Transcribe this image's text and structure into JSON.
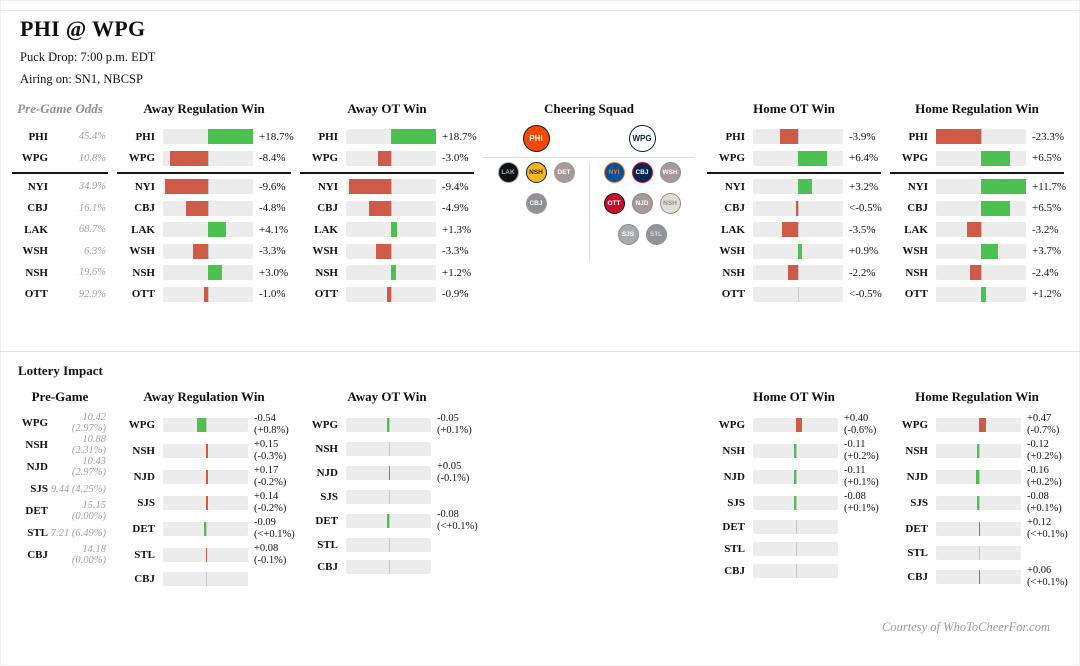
{
  "title": "PHI @ WPG",
  "subtitle1": "Puck Drop: 7:00 p.m. EDT",
  "subtitle2": "Airing on: SN1, NBCSP",
  "footer": "Courtesy of WhoToCheerFor.com",
  "lottery_title": "Lottery Impact",
  "colors": {
    "positive_green": "#4CC152",
    "negative_red": "#CE5B48",
    "bar_track": "#ECECEC",
    "center_line": "#C7C7C7",
    "muted_text": "#A0A0A0",
    "divider_black": "#151515"
  },
  "chart_data": [
    {
      "id": "pregame-odds",
      "type": "table",
      "title": "Pre-Game Odds",
      "categories": [
        "PHI",
        "WPG",
        "NYI",
        "CBJ",
        "LAK",
        "WSH",
        "NSH",
        "OTT"
      ],
      "values": [
        "45.4%",
        "10.8%",
        "34.9%",
        "16.1%",
        "68.7%",
        "6.3%",
        "19.6%",
        "92.9%"
      ]
    },
    {
      "id": "away-regulation-win",
      "type": "bar",
      "title": "Away Regulation Win",
      "xlim": [
        -10,
        10
      ],
      "categories": [
        "PHI",
        "WPG",
        "NYI",
        "CBJ",
        "LAK",
        "WSH",
        "NSH",
        "OTT"
      ],
      "values": [
        18.7,
        -8.4,
        -9.6,
        -4.8,
        4.1,
        -3.3,
        3.0,
        -1.0
      ],
      "labels": [
        "+18.7%",
        "-8.4%",
        "-9.6%",
        "-4.8%",
        "+4.1%",
        "-3.3%",
        "+3.0%",
        "-1.0%"
      ]
    },
    {
      "id": "away-ot-win",
      "type": "bar",
      "title": "Away OT Win",
      "xlim": [
        -10,
        10
      ],
      "categories": [
        "PHI",
        "WPG",
        "NYI",
        "CBJ",
        "LAK",
        "WSH",
        "NSH",
        "OTT"
      ],
      "values": [
        18.7,
        -3.0,
        -9.4,
        -4.9,
        1.3,
        -3.3,
        1.2,
        -0.9
      ],
      "labels": [
        "+18.7%",
        "-3.0%",
        "-9.4%",
        "-4.9%",
        "+1.3%",
        "-3.3%",
        "+1.2%",
        "-0.9%"
      ]
    },
    {
      "id": "home-ot-win",
      "type": "bar",
      "title": "Home OT Win",
      "xlim": [
        -10,
        10
      ],
      "categories": [
        "PHI",
        "WPG",
        "NYI",
        "CBJ",
        "LAK",
        "WSH",
        "NSH",
        "OTT"
      ],
      "values": [
        -3.9,
        6.4,
        3.2,
        -0.5,
        -3.5,
        0.9,
        -2.2,
        0
      ],
      "labels": [
        "-3.9%",
        "+6.4%",
        "+3.2%",
        "<-0.5%",
        "-3.5%",
        "+0.9%",
        "-2.2%",
        "<-0.5%"
      ]
    },
    {
      "id": "home-regulation-win",
      "type": "bar",
      "title": "Home Regulation Win",
      "xlim": [
        -10,
        10
      ],
      "categories": [
        "PHI",
        "WPG",
        "NYI",
        "CBJ",
        "LAK",
        "WSH",
        "NSH",
        "OTT"
      ],
      "values": [
        -23.3,
        6.5,
        11.7,
        6.5,
        -3.2,
        3.7,
        -2.4,
        1.2
      ],
      "labels": [
        "-23.3%",
        "+6.5%",
        "+11.7%",
        "+6.5%",
        "-3.2%",
        "+3.7%",
        "-2.4%",
        "+1.2%"
      ]
    },
    {
      "id": "lottery-pregame",
      "type": "table",
      "title": "Pre-Game",
      "categories": [
        "WPG",
        "NSH",
        "NJD",
        "SJS",
        "DET",
        "STL",
        "CBJ"
      ],
      "values": [
        "10.42 (2.97%)",
        "10.88 (2.31%)",
        "10.43 (2.97%)",
        "9.44 (4.25%)",
        "15.15 (0.00%)",
        "7.21 (6.49%)",
        "14.18 (0.00%)"
      ]
    },
    {
      "id": "lottery-away-regulation-win",
      "type": "bar",
      "title": "Away Regulation Win",
      "categories": [
        "WPG",
        "NSH",
        "NJD",
        "SJS",
        "DET",
        "STL",
        "CBJ"
      ],
      "values": [
        -0.54,
        0.15,
        0.17,
        0.14,
        -0.09,
        0.08,
        null
      ],
      "labels": [
        "-0.54",
        "+0.15",
        "+0.17",
        "+0.14",
        "-0.09",
        "+0.08",
        null
      ],
      "notes": [
        "(+0.8%)",
        "(-0.3%)",
        "(-0.2%)",
        "(-0.2%)",
        "(<+0.1%)",
        "(-0.1%)",
        null
      ]
    },
    {
      "id": "lottery-away-ot-win",
      "type": "bar",
      "title": "Away OT Win",
      "categories": [
        "WPG",
        "NSH",
        "NJD",
        "SJS",
        "DET",
        "STL",
        "CBJ"
      ],
      "values": [
        -0.05,
        null,
        0.05,
        null,
        -0.08,
        null,
        null
      ],
      "labels": [
        "-0.05",
        null,
        "+0.05",
        null,
        "-0.08",
        null,
        null
      ],
      "notes": [
        "(+0.1%)",
        null,
        "(-0.1%)",
        null,
        "(<+0.1%)",
        null,
        null
      ]
    },
    {
      "id": "lottery-home-ot-win",
      "type": "bar",
      "title": "Home OT Win",
      "categories": [
        "WPG",
        "NSH",
        "NJD",
        "SJS",
        "DET",
        "STL",
        "CBJ"
      ],
      "values": [
        0.4,
        -0.11,
        -0.11,
        -0.08,
        null,
        null,
        null
      ],
      "labels": [
        "+0.40",
        "-0.11",
        "-0.11",
        "-0.08",
        null,
        null,
        null
      ],
      "notes": [
        "(-0.6%)",
        "(+0.2%)",
        "(+0.1%)",
        "(+0.1%)",
        null,
        null,
        null
      ]
    },
    {
      "id": "lottery-home-regulation-win",
      "type": "bar",
      "title": "Home Regulation Win",
      "categories": [
        "WPG",
        "NSH",
        "NJD",
        "SJS",
        "DET",
        "STL",
        "CBJ"
      ],
      "values": [
        0.47,
        -0.12,
        -0.16,
        -0.08,
        0.12,
        null,
        0.06
      ],
      "labels": [
        "+0.47",
        "-0.12",
        "-0.16",
        "-0.08",
        "+0.12",
        null,
        "+0.06"
      ],
      "notes": [
        "(-0.7%)",
        "(+0.2%)",
        "(+0.2%)",
        "(+0.1%)",
        "(<+0.1%)",
        null,
        "(<+0.1%)"
      ]
    }
  ],
  "cheering_squad": {
    "title": "Cheering Squad",
    "away_team": "PHI",
    "home_team": "WPG",
    "away_supporters": [
      [
        {
          "team": "LAK",
          "faded": false
        },
        {
          "team": "NSH",
          "faded": false
        },
        {
          "team": "DET",
          "faded": true
        }
      ],
      [
        {
          "team": "CBJ",
          "faded": true
        }
      ]
    ],
    "home_supporters": [
      [
        {
          "team": "NYI",
          "faded": false
        },
        {
          "team": "CBJ",
          "faded": false
        },
        {
          "team": "WSH",
          "faded": true
        }
      ],
      [
        {
          "team": "OTT",
          "faded": false
        },
        {
          "team": "NJD",
          "faded": true
        },
        {
          "team": "NSH",
          "faded": true
        }
      ],
      [
        {
          "team": "SJS",
          "faded": true
        },
        {
          "team": "STL",
          "faded": true
        }
      ]
    ]
  },
  "team_colors": {
    "PHI": {
      "bg": "#F74902",
      "fg": "#FFFFFF",
      "bd": "#111111"
    },
    "WPG": {
      "bg": "#FFFFFF",
      "fg": "#041E42",
      "bd": "#041E42"
    },
    "LAK": {
      "bg": "#111111",
      "fg": "#A2AAAD",
      "bd": "#A2AAAD"
    },
    "NSH": {
      "bg": "#FFB81C",
      "fg": "#041E42",
      "bd": "#041E42"
    },
    "DET": {
      "bg": "#CE1126",
      "fg": "#FFFFFF",
      "bd": "#CE1126"
    },
    "CBJ": {
      "bg": "#002654",
      "fg": "#FFFFFF",
      "bd": "#CE1126"
    },
    "NYI": {
      "bg": "#00539B",
      "fg": "#F47D30",
      "bd": "#F47D30"
    },
    "WSH": {
      "bg": "#C8102E",
      "fg": "#FFFFFF",
      "bd": "#041E42"
    },
    "OTT": {
      "bg": "#C8102E",
      "fg": "#FFFFFF",
      "bd": "#111111"
    },
    "NJD": {
      "bg": "#CE1126",
      "fg": "#FFFFFF",
      "bd": "#111111"
    },
    "SJS": {
      "bg": "#006D75",
      "fg": "#FFFFFF",
      "bd": "#111111"
    },
    "STL": {
      "bg": "#002F87",
      "fg": "#FCB514",
      "bd": "#041E42"
    }
  }
}
